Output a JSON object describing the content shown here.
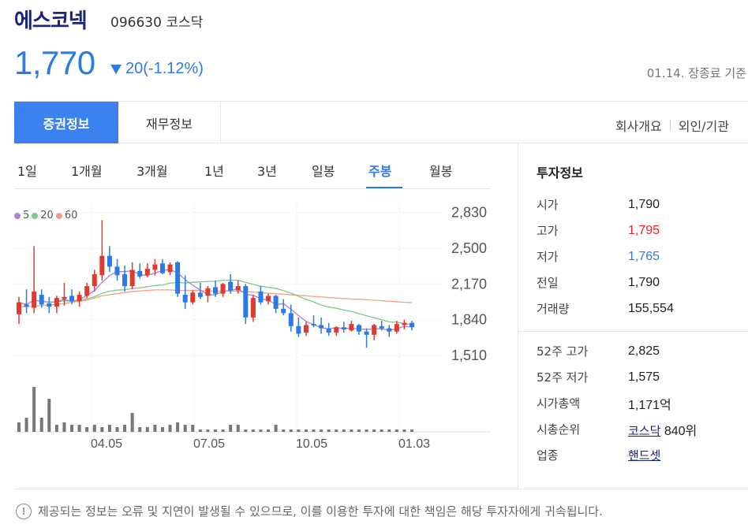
{
  "stock": {
    "name": "에스코넥",
    "code": "096630",
    "market": "코스닥",
    "price": "1,770",
    "change": "20(-1.12%)",
    "direction": "down",
    "basis": "01.14. 장종료 기준"
  },
  "tabs": {
    "securities": "증권정보",
    "financial": "재무정보",
    "company": "회사개요",
    "foreign": "외인/기관"
  },
  "periods": [
    "1일",
    "1개월",
    "3개월",
    "1년",
    "3년",
    "일봉",
    "주봉",
    "월봉"
  ],
  "active_period": "주봉",
  "legend": {
    "ma5": "5",
    "ma20": "20",
    "ma60": "60"
  },
  "colors": {
    "accent": "#2b7be4",
    "up": "#e03a2f",
    "down": "#2b7be4",
    "ma5": "#b07fd8",
    "ma20": "#7cc98a",
    "ma60": "#f0a080"
  },
  "chart_data": {
    "type": "candlestick",
    "y_ticks": [
      "2,830",
      "2,500",
      "2,170",
      "1,840",
      "1,510"
    ],
    "x_ticks": [
      "04.05",
      "07.05",
      "10.05",
      "01.03"
    ],
    "ylim": [
      1400,
      2930
    ],
    "candles": [
      {
        "o": 1890,
        "h": 2050,
        "l": 1800,
        "c": 2000
      },
      {
        "o": 1980,
        "h": 2120,
        "l": 1900,
        "c": 1960
      },
      {
        "o": 1950,
        "h": 2520,
        "l": 1900,
        "c": 2100
      },
      {
        "o": 2070,
        "h": 2120,
        "l": 1950,
        "c": 1980
      },
      {
        "o": 1990,
        "h": 2050,
        "l": 1900,
        "c": 1960
      },
      {
        "o": 1960,
        "h": 2060,
        "l": 1900,
        "c": 2040
      },
      {
        "o": 2030,
        "h": 2180,
        "l": 1970,
        "c": 2050
      },
      {
        "o": 2060,
        "h": 2120,
        "l": 1980,
        "c": 2010
      },
      {
        "o": 2010,
        "h": 2100,
        "l": 1960,
        "c": 2070
      },
      {
        "o": 2060,
        "h": 2180,
        "l": 2040,
        "c": 2150
      },
      {
        "o": 2150,
        "h": 2300,
        "l": 2100,
        "c": 2260
      },
      {
        "o": 2250,
        "h": 2760,
        "l": 2200,
        "c": 2430
      },
      {
        "o": 2430,
        "h": 2520,
        "l": 2280,
        "c": 2330
      },
      {
        "o": 2330,
        "h": 2400,
        "l": 2200,
        "c": 2250
      },
      {
        "o": 2260,
        "h": 2340,
        "l": 2100,
        "c": 2150
      },
      {
        "o": 2150,
        "h": 2370,
        "l": 2120,
        "c": 2300
      },
      {
        "o": 2290,
        "h": 2360,
        "l": 2220,
        "c": 2240
      },
      {
        "o": 2250,
        "h": 2360,
        "l": 2230,
        "c": 2310
      },
      {
        "o": 2300,
        "h": 2400,
        "l": 2250,
        "c": 2350
      },
      {
        "o": 2360,
        "h": 2400,
        "l": 2260,
        "c": 2270
      },
      {
        "o": 2280,
        "h": 2370,
        "l": 2250,
        "c": 2350
      },
      {
        "o": 2370,
        "h": 2380,
        "l": 2050,
        "c": 2080
      },
      {
        "o": 2070,
        "h": 2250,
        "l": 1940,
        "c": 2000
      },
      {
        "o": 2000,
        "h": 2110,
        "l": 1980,
        "c": 2090
      },
      {
        "o": 2090,
        "h": 2180,
        "l": 2030,
        "c": 2050
      },
      {
        "o": 2060,
        "h": 2150,
        "l": 2000,
        "c": 2130
      },
      {
        "o": 2140,
        "h": 2200,
        "l": 2050,
        "c": 2080
      },
      {
        "o": 2080,
        "h": 2180,
        "l": 2050,
        "c": 2170
      },
      {
        "o": 2190,
        "h": 2260,
        "l": 2080,
        "c": 2110
      },
      {
        "o": 2110,
        "h": 2200,
        "l": 2080,
        "c": 2150
      },
      {
        "o": 2150,
        "h": 2170,
        "l": 1800,
        "c": 1860
      },
      {
        "o": 1860,
        "h": 2070,
        "l": 1820,
        "c": 2040
      },
      {
        "o": 2100,
        "h": 2150,
        "l": 1980,
        "c": 2000
      },
      {
        "o": 2010,
        "h": 2080,
        "l": 1980,
        "c": 2060
      },
      {
        "o": 2060,
        "h": 2070,
        "l": 1900,
        "c": 1940
      },
      {
        "o": 1940,
        "h": 2030,
        "l": 1880,
        "c": 1900
      },
      {
        "o": 1900,
        "h": 1980,
        "l": 1730,
        "c": 1780
      },
      {
        "o": 1780,
        "h": 1860,
        "l": 1680,
        "c": 1710
      },
      {
        "o": 1720,
        "h": 1820,
        "l": 1690,
        "c": 1790
      },
      {
        "o": 1800,
        "h": 1880,
        "l": 1770,
        "c": 1790
      },
      {
        "o": 1790,
        "h": 1860,
        "l": 1710,
        "c": 1760
      },
      {
        "o": 1760,
        "h": 1810,
        "l": 1690,
        "c": 1720
      },
      {
        "o": 1720,
        "h": 1780,
        "l": 1690,
        "c": 1770
      },
      {
        "o": 1770,
        "h": 1820,
        "l": 1720,
        "c": 1750
      },
      {
        "o": 1740,
        "h": 1830,
        "l": 1730,
        "c": 1800
      },
      {
        "o": 1790,
        "h": 1800,
        "l": 1700,
        "c": 1730
      },
      {
        "o": 1730,
        "h": 1760,
        "l": 1580,
        "c": 1700
      },
      {
        "o": 1700,
        "h": 1800,
        "l": 1650,
        "c": 1790
      },
      {
        "o": 1780,
        "h": 1830,
        "l": 1740,
        "c": 1760
      },
      {
        "o": 1760,
        "h": 1790,
        "l": 1680,
        "c": 1730
      },
      {
        "o": 1730,
        "h": 1830,
        "l": 1710,
        "c": 1800
      },
      {
        "o": 1790,
        "h": 1840,
        "l": 1750,
        "c": 1810
      },
      {
        "o": 1810,
        "h": 1830,
        "l": 1740,
        "c": 1770
      }
    ],
    "volume": [
      8,
      12,
      38,
      12,
      28,
      6,
      8,
      6,
      6,
      4,
      6,
      4,
      6,
      4,
      6,
      16,
      4,
      4,
      6,
      4,
      6,
      8,
      6,
      6,
      2,
      2,
      2,
      2,
      6,
      6,
      2,
      2,
      2,
      2,
      6,
      2,
      2,
      2,
      2,
      2,
      2,
      2,
      2,
      2,
      2,
      2,
      2,
      2,
      2,
      2,
      2,
      2,
      2
    ]
  },
  "info": {
    "title": "투자정보",
    "rows1": [
      {
        "label": "시가",
        "value": "1,790",
        "tone": ""
      },
      {
        "label": "고가",
        "value": "1,795",
        "tone": "red"
      },
      {
        "label": "저가",
        "value": "1,765",
        "tone": "blue"
      },
      {
        "label": "전일",
        "value": "1,790",
        "tone": ""
      },
      {
        "label": "거래량",
        "value": "155,554",
        "tone": ""
      }
    ],
    "w52_high_label": "52주 고가",
    "w52_high": "2,825",
    "w52_low_label": "52주 저가",
    "w52_low": "1,575",
    "mcap_label": "시가총액",
    "mcap": "1,171억",
    "rank_label": "시총순위",
    "rank_market": "코스닥",
    "rank_value": "840위",
    "sector_label": "업종",
    "sector": "핸드셋"
  },
  "notice": "제공되는 정보는 오류 및 지연이 발생될 수 있으므로, 이를 이용한 투자에 대한 책임은 해당 투자자에게 귀속됩니다."
}
